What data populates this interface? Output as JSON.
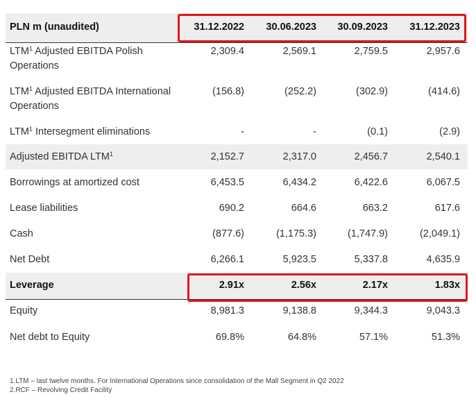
{
  "table": {
    "header": {
      "label": "PLN m (unaudited)",
      "periods": [
        "31.12.2022",
        "30.06.2023",
        "30.09.2023",
        "31.12.2023"
      ]
    },
    "rows": [
      {
        "label": "LTM¹ Adjusted EBITDA Polish Operations",
        "line1": "LTM",
        "sup": "1",
        "line1b": " Adjusted EBITDA Polish",
        "line2": "Operations",
        "values": [
          "2,309.4",
          "2,569.1",
          "2,759.5",
          "2,957.6"
        ]
      },
      {
        "label": "LTM¹ Adjusted EBITDA International Operations",
        "line1": "LTM",
        "sup": "1",
        "line1b": " Adjusted EBITDA International",
        "line2": "Operations",
        "values": [
          "(156.8)",
          "(252.2)",
          "(302.9)",
          "(414.6)"
        ]
      },
      {
        "label": "LTM¹ Intersegment eliminations",
        "line1": "LTM",
        "sup": "1",
        "line1b": " Intersegment eliminations",
        "values": [
          "-",
          "-",
          "(0.1)",
          "(2.9)"
        ]
      },
      {
        "label": "Adjusted EBITDA LTM¹",
        "line1": "Adjusted EBITDA LTM",
        "sup": "1",
        "values": [
          "2,152.7",
          "2,317.0",
          "2,456.7",
          "2,540.1"
        ]
      },
      {
        "label": "Borrowings at amortized cost",
        "values": [
          "6,453.5",
          "6,434.2",
          "6,422.6",
          "6,067.5"
        ]
      },
      {
        "label": "Lease liabilities",
        "values": [
          "690.2",
          "664.6",
          "663.2",
          "617.6"
        ]
      },
      {
        "label": "Cash",
        "values": [
          "(877.6)",
          "(1,175.3)",
          "(1,747.9)",
          "(2,049.1)"
        ]
      },
      {
        "label": "Net Debt",
        "values": [
          "6,266.1",
          "5,923.5",
          "5,337.8",
          "4,635.9"
        ]
      },
      {
        "label": "Leverage",
        "values": [
          "2.91x",
          "2.56x",
          "2.17x",
          "1.83x"
        ]
      },
      {
        "label": "Equity",
        "values": [
          "8,981.3",
          "9,138.8",
          "9,344.3",
          "9,043.3"
        ]
      },
      {
        "label": "Net debt to Equity",
        "values": [
          "69.8%",
          "64.8%",
          "57.1%",
          "51.3%"
        ]
      }
    ]
  },
  "footnotes": [
    "1.LTM – last twelve months. For International Operations since consolidation of the Mall Segment in Q2 2022",
    "2.RCF – Revolving Credit Facility"
  ],
  "colors": {
    "highlight": "#e2161b",
    "shade": "#eeeeee",
    "text": "#333333"
  }
}
